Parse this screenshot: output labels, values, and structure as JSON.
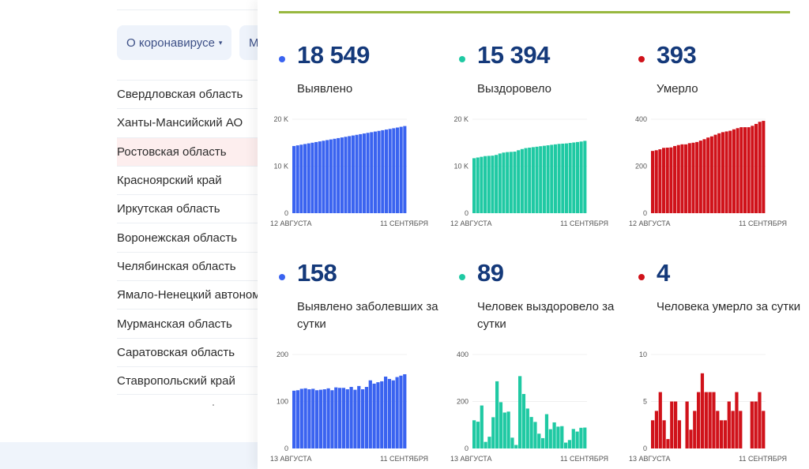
{
  "left": {
    "nav_dropdown": {
      "label": "О коронавирусе",
      "arrow": "▾"
    },
    "nav_dropdown2": {
      "label": "М"
    },
    "regions": [
      {
        "name": "Свердловская область",
        "highlighted": false
      },
      {
        "name": "Ханты-Мансийский АО",
        "highlighted": false
      },
      {
        "name": "Ростовская область",
        "highlighted": true
      },
      {
        "name": "Красноярский край",
        "highlighted": false
      },
      {
        "name": "Иркутская область",
        "highlighted": false
      },
      {
        "name": "Воронежская область",
        "highlighted": false
      },
      {
        "name": "Челябинская область",
        "highlighted": false
      },
      {
        "name": "Ямало-Ненецкий автоном",
        "highlighted": false
      },
      {
        "name": "Мурманская область",
        "highlighted": false
      },
      {
        "name": "Саратовская область",
        "highlighted": false
      },
      {
        "name": "Ставропольский край",
        "highlighted": false
      }
    ]
  },
  "colors": {
    "cases": "#3a63f0",
    "recovered": "#1fc9a3",
    "deaths": "#d0121a",
    "number": "#14397a",
    "accent_line": "#98b83f"
  },
  "stats": [
    {
      "id": "cases",
      "value": "18 549",
      "label": "Выявлено",
      "color": "#3a63f0"
    },
    {
      "id": "recovered",
      "value": "15 394",
      "label": "Выздоровело",
      "color": "#1fc9a3"
    },
    {
      "id": "deaths",
      "value": "393",
      "label": "Умерло",
      "color": "#d0121a"
    },
    {
      "id": "daily-cases",
      "value": "158",
      "label": "Выявлено заболевших за сутки",
      "color": "#3a63f0"
    },
    {
      "id": "daily-recovered",
      "value": "89",
      "label": "Человек выздоровело за сутки",
      "color": "#1fc9a3"
    },
    {
      "id": "daily-deaths",
      "value": "4",
      "label": "Человека умерло за сутки",
      "color": "#d0121a"
    }
  ],
  "chart_data": [
    {
      "type": "bar",
      "title": "Выявлено",
      "color": "#3a63f0",
      "x_start_label": "12 АВГУСТА",
      "x_end_label": "11 СЕНТЯБРЯ",
      "yticks": [
        0,
        10000,
        20000
      ],
      "ytick_labels": [
        "0",
        "10 K",
        "20 K"
      ],
      "ylim": [
        0,
        20000
      ],
      "values": [
        14300,
        14440,
        14580,
        14720,
        14860,
        15000,
        15140,
        15280,
        15420,
        15560,
        15700,
        15840,
        15980,
        16120,
        16260,
        16400,
        16540,
        16680,
        16820,
        16960,
        17100,
        17240,
        17380,
        17520,
        17660,
        17800,
        17940,
        18080,
        18230,
        18390,
        18549
      ]
    },
    {
      "type": "bar",
      "title": "Выздоровело",
      "color": "#1fc9a3",
      "x_start_label": "12 АВГУСТА",
      "x_end_label": "11 СЕНТЯБРЯ",
      "yticks": [
        0,
        10000,
        20000
      ],
      "ytick_labels": [
        "0",
        "10 K",
        "20 K"
      ],
      "ylim": [
        0,
        20000
      ],
      "values": [
        11700,
        11850,
        12000,
        12150,
        12200,
        12250,
        12400,
        12700,
        12900,
        13000,
        13050,
        13100,
        13400,
        13650,
        13850,
        13950,
        14050,
        14150,
        14250,
        14350,
        14450,
        14550,
        14650,
        14750,
        14800,
        14850,
        14950,
        15050,
        15150,
        15250,
        15394
      ]
    },
    {
      "type": "bar",
      "title": "Умерло",
      "color": "#d0121a",
      "x_start_label": "12 АВГУСТА",
      "x_end_label": "11 СЕНТЯБРЯ",
      "yticks": [
        0,
        200,
        400
      ],
      "ytick_labels": [
        "0",
        "200",
        "400"
      ],
      "ylim": [
        0,
        400
      ],
      "values": [
        265,
        268,
        272,
        278,
        279,
        280,
        286,
        290,
        293,
        293,
        298,
        300,
        303,
        309,
        315,
        322,
        327,
        334,
        340,
        345,
        348,
        351,
        357,
        362,
        366,
        366,
        366,
        372,
        380,
        389,
        393
      ]
    },
    {
      "type": "bar",
      "title": "Выявлено заболевших за сутки",
      "color": "#3a63f0",
      "x_start_label": "13 АВГУСТА",
      "x_end_label": "11 СЕНТЯБРЯ",
      "yticks": [
        0,
        100,
        200
      ],
      "ytick_labels": [
        "0",
        "100",
        "200"
      ],
      "ylim": [
        0,
        200
      ],
      "values": [
        123,
        124,
        127,
        128,
        126,
        127,
        124,
        125,
        126,
        128,
        124,
        130,
        129,
        129,
        126,
        131,
        125,
        133,
        126,
        131,
        145,
        138,
        141,
        143,
        153,
        148,
        145,
        152,
        155,
        158
      ]
    },
    {
      "type": "bar",
      "title": "Человек выздоровело за сутки",
      "color": "#1fc9a3",
      "x_start_label": "13 АВГУСТА",
      "x_end_label": "11 СЕНТЯБРЯ",
      "yticks": [
        0,
        200,
        400
      ],
      "ytick_labels": [
        "0",
        "200",
        "400"
      ],
      "ylim": [
        0,
        400
      ],
      "values": [
        120,
        114,
        183,
        28,
        50,
        133,
        286,
        197,
        153,
        157,
        46,
        15,
        308,
        232,
        170,
        134,
        113,
        63,
        44,
        146,
        82,
        111,
        93,
        95,
        25,
        36,
        83,
        72,
        88,
        89
      ]
    },
    {
      "type": "bar",
      "title": "Человека умерло за сутки",
      "color": "#d0121a",
      "x_start_label": "13 АВГУСТА",
      "x_end_label": "11 СЕНТЯБРЯ",
      "yticks": [
        0,
        5,
        10
      ],
      "ytick_labels": [
        "0",
        "5",
        "10"
      ],
      "ylim": [
        0,
        10
      ],
      "values": [
        3,
        4,
        6,
        3,
        1,
        5,
        5,
        3,
        0,
        5,
        2,
        4,
        6,
        8,
        6,
        6,
        6,
        4,
        3,
        3,
        5,
        4,
        6,
        4,
        0,
        0,
        5,
        5,
        6,
        4
      ]
    }
  ]
}
